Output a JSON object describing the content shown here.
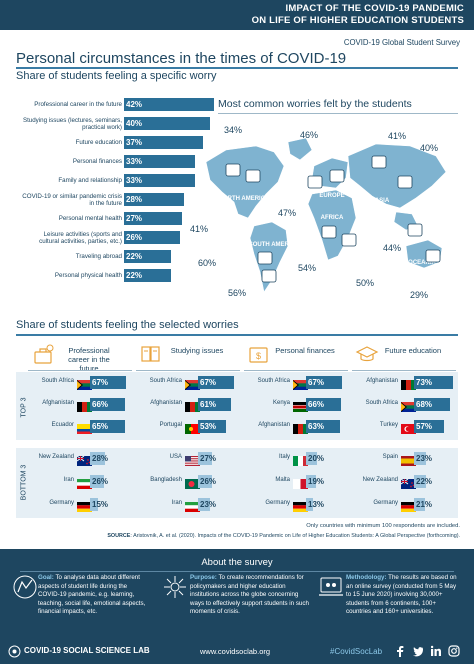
{
  "header": {
    "line1": "IMPACT OF THE COVID-19 PANDEMIC",
    "line2": "ON LIFE OF HIGHER EDUCATION STUDENTS",
    "survey_name": "COVID-19 Global Student Survey"
  },
  "title": "Personal circumstances in the times of COVID-19",
  "subtitle": "Share of students feeling a specific worry",
  "worries": [
    {
      "label": "Professional career in the future",
      "value": 42,
      "display": "42%"
    },
    {
      "label": "Studying issues (lectures, seminars, practical work)",
      "value": 40,
      "display": "40%"
    },
    {
      "label": "Future education",
      "value": 37,
      "display": "37%"
    },
    {
      "label": "Personal finances",
      "value": 33,
      "display": "33%"
    },
    {
      "label": "Family and relationship",
      "value": 33,
      "display": "33%"
    },
    {
      "label": "COVID-19 or similar pandemic crisis in the future",
      "value": 28,
      "display": "28%"
    },
    {
      "label": "Personal mental health",
      "value": 27,
      "display": "27%"
    },
    {
      "label": "Leisure activities (sports and cultural activities, parties, etc.)",
      "value": 26,
      "display": "26%"
    },
    {
      "label": "Traveling abroad",
      "value": 22,
      "display": "22%"
    },
    {
      "label": "Personal physical health",
      "value": 22,
      "display": "22%"
    }
  ],
  "map": {
    "title": "Most common worries felt by the students",
    "regions": [
      "NORTH AMERICA",
      "SOUTH AMERICA",
      "EUROPE",
      "AFRICA",
      "ASIA",
      "OCEANIA"
    ],
    "percentages": [
      "34%",
      "46%",
      "41%",
      "40%",
      "41%",
      "47%",
      "60%",
      "54%",
      "44%",
      "50%",
      "56%",
      "29%"
    ]
  },
  "section2_title": "Share of students feeling the selected worries",
  "columns": [
    {
      "label": "Professional career in the future",
      "icon": "career-icon",
      "top": [
        [
          "South Africa",
          "67%",
          67,
          "za"
        ],
        [
          "Afghanistan",
          "66%",
          66,
          "af"
        ],
        [
          "Ecuador",
          "65%",
          65,
          "ec"
        ]
      ],
      "bottom": [
        [
          "New Zealand",
          "28%",
          28,
          "nz"
        ],
        [
          "Iran",
          "26%",
          26,
          "ir"
        ],
        [
          "Germany",
          "15%",
          15,
          "de"
        ]
      ]
    },
    {
      "label": "Studying issues",
      "icon": "studying-icon",
      "top": [
        [
          "South Africa",
          "67%",
          67,
          "za"
        ],
        [
          "Afghanistan",
          "61%",
          61,
          "af"
        ],
        [
          "Portugal",
          "53%",
          53,
          "pt"
        ]
      ],
      "bottom": [
        [
          "USA",
          "27%",
          27,
          "us"
        ],
        [
          "Bangladesh",
          "26%",
          26,
          "bd"
        ],
        [
          "Iran",
          "23%",
          23,
          "ir"
        ]
      ]
    },
    {
      "label": "Personal finances",
      "icon": "finances-icon",
      "top": [
        [
          "South Africa",
          "67%",
          67,
          "za"
        ],
        [
          "Kenya",
          "66%",
          66,
          "ke"
        ],
        [
          "Afghanistan",
          "63%",
          63,
          "af"
        ]
      ],
      "bottom": [
        [
          "Italy",
          "20%",
          20,
          "it"
        ],
        [
          "Malta",
          "19%",
          19,
          "mt"
        ],
        [
          "Germany",
          "13%",
          13,
          "de"
        ]
      ]
    },
    {
      "label": "Future education",
      "icon": "education-icon",
      "top": [
        [
          "Afghanistan",
          "73%",
          73,
          "af"
        ],
        [
          "South Africa",
          "68%",
          68,
          "za"
        ],
        [
          "Turkey",
          "57%",
          57,
          "tr"
        ]
      ],
      "bottom": [
        [
          "Spain",
          "23%",
          23,
          "es"
        ],
        [
          "New Zealand",
          "22%",
          22,
          "nz"
        ],
        [
          "Germany",
          "21%",
          21,
          "de"
        ]
      ]
    }
  ],
  "side_labels": {
    "top": "TOP 3",
    "bottom": "BOTTOM 3"
  },
  "note": "Only countries with minimum 100 respondents are included.",
  "source_label": "SOURCE",
  "source": ": Aristovnik, A. et al. (2020). Impacts of the COVID-19 Pandemic on Life of Higher Education Students: A Global Perspective (forthcoming).",
  "about": {
    "title": "About the survey",
    "goal_label": "Goal:",
    "goal": "To analyse data about different aspects of student life during the COVID-19 pandemic, e.g. learning, teaching, social life, emotional aspects, financial impacts, etc.",
    "purpose_label": "Purpose:",
    "purpose": "To create recommendations for policymakers and higher education institutions across the globe concerning ways to effectively support students in such moments of crisis.",
    "method_label": "Methodology:",
    "method": "The results are based on an online survey (conducted from 5 May to 15 June 2020) involving 30,000+ students from 6 continents, 100+ countries and 160+ universities."
  },
  "footer": {
    "brand": "COVID-19 SOCIAL SCIENCE LAB",
    "url": "www.covidsoclab.org",
    "hashtag": "#CovidSocLab"
  },
  "colors": {
    "navy": "#1e4660",
    "blue": "#2a6f97",
    "light_blue": "#3d8eb9",
    "band": "#e6eff5",
    "map": "#7fb3d0"
  }
}
